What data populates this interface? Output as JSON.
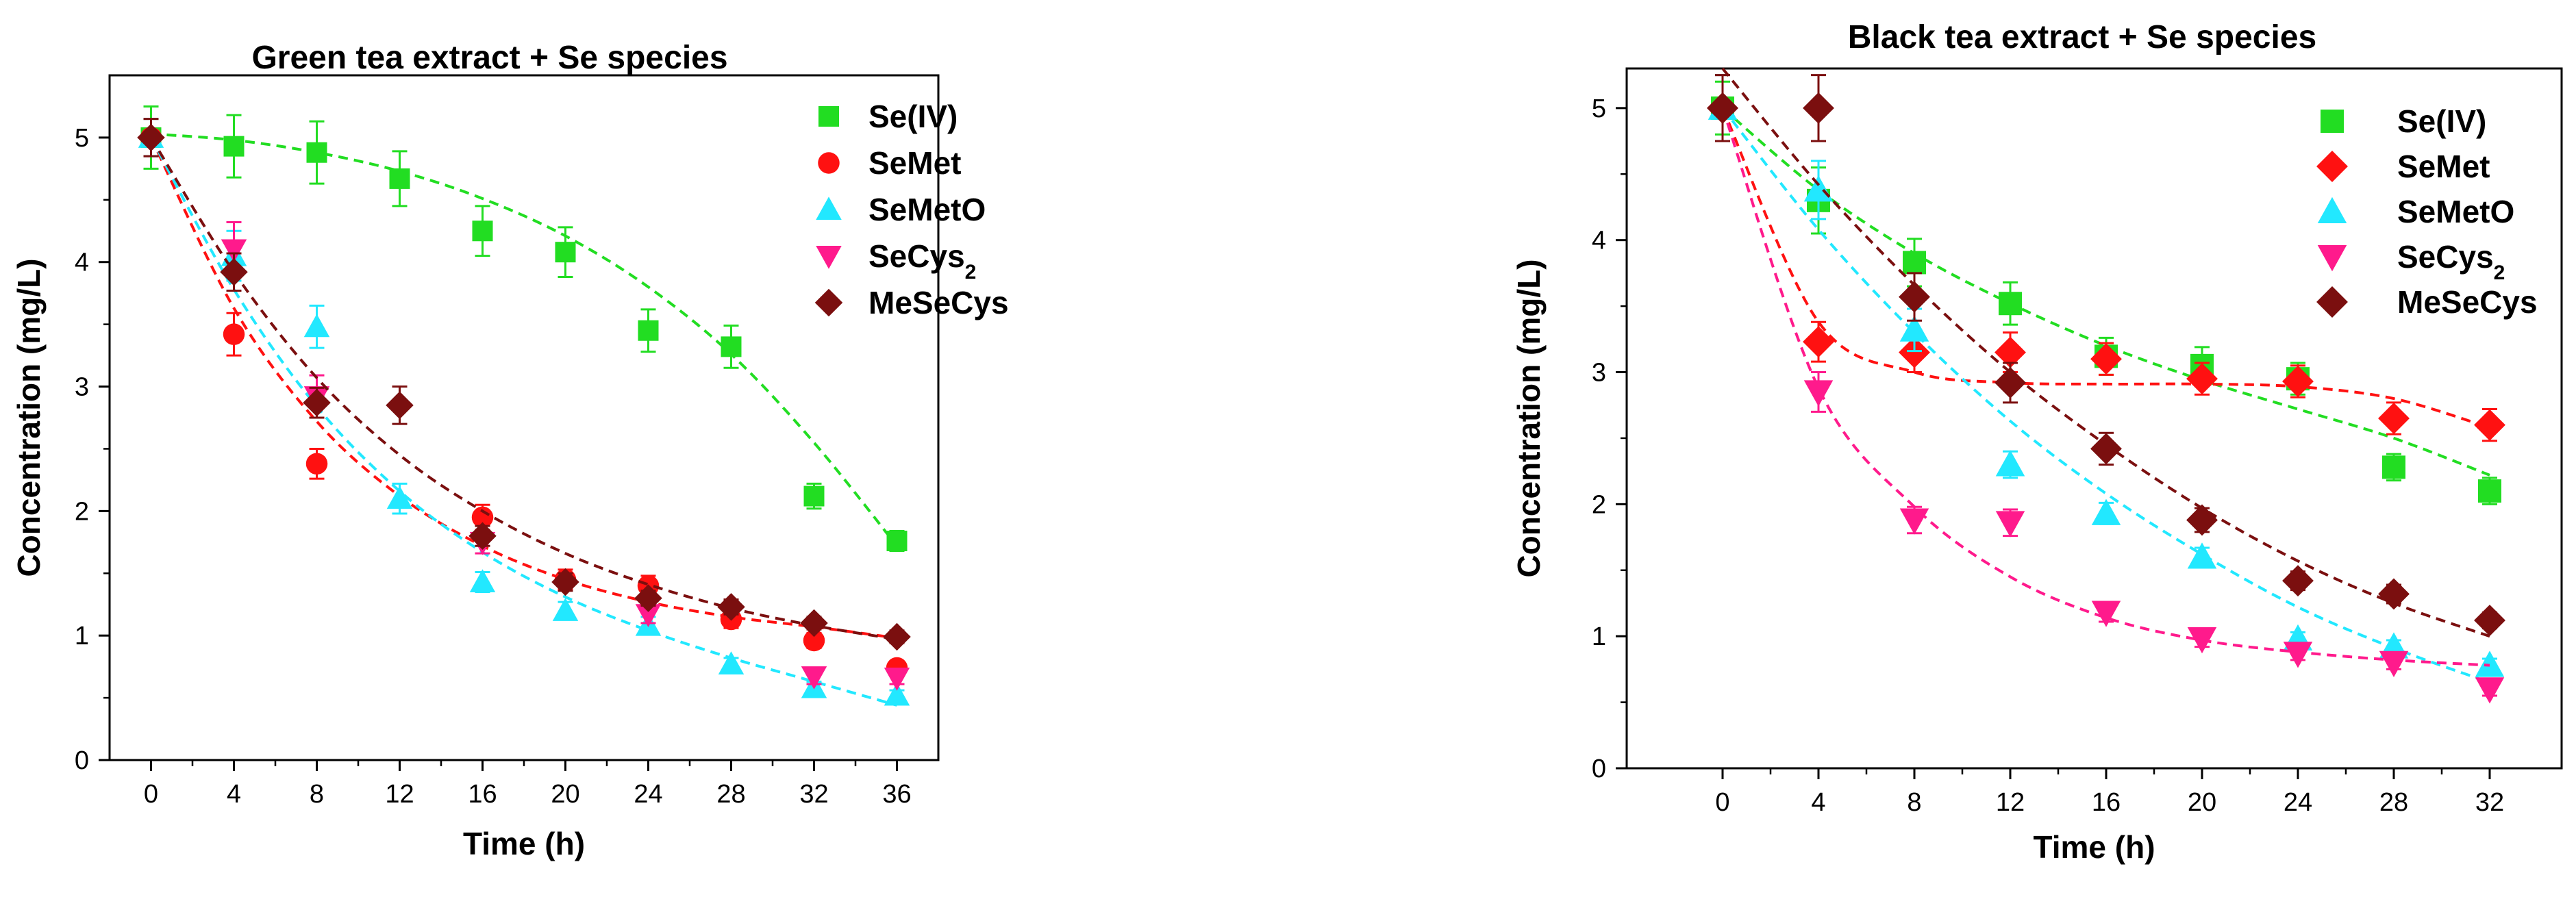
{
  "chart_data": [
    {
      "type": "scatter",
      "title": "Green tea extract + Se species",
      "xlabel": "Time (h)",
      "ylabel": "Concentration (mg/L)",
      "xlim": [
        -2,
        38
      ],
      "ylim": [
        0,
        5.5
      ],
      "xticks": [
        0,
        4,
        8,
        12,
        16,
        20,
        24,
        28,
        32,
        36
      ],
      "yticks": [
        0,
        1,
        2,
        3,
        4,
        5
      ],
      "x": [
        0,
        4,
        8,
        12,
        16,
        20,
        24,
        28,
        32,
        36
      ],
      "legend_position": "top-right",
      "series": [
        {
          "name": "Se(IV)",
          "color": "#22dd22",
          "marker": "square",
          "values": [
            5.0,
            4.93,
            4.88,
            4.67,
            4.25,
            4.08,
            3.45,
            3.32,
            2.12,
            1.76
          ],
          "errors": [
            0.25,
            0.25,
            0.25,
            0.22,
            0.2,
            0.2,
            0.17,
            0.17,
            0.1,
            0.08
          ],
          "fit": [
            5.03,
            4.98,
            4.88,
            4.73,
            4.51,
            4.21,
            3.8,
            3.26,
            2.55,
            1.72
          ]
        },
        {
          "name": "SeMet",
          "color": "#ff1111",
          "marker": "circle",
          "values": [
            5.0,
            3.42,
            2.38,
            null,
            1.95,
            1.45,
            1.4,
            1.13,
            0.96,
            0.74
          ],
          "errors": [
            0.15,
            0.17,
            0.12,
            null,
            0.1,
            0.08,
            0.08,
            0.07,
            0.06,
            0.05
          ],
          "fit": [
            5.0,
            3.63,
            2.72,
            2.12,
            1.72,
            1.45,
            1.27,
            1.15,
            1.07,
            0.98
          ]
        },
        {
          "name": "SeMetO",
          "color": "#22e8ff",
          "marker": "triangle-up",
          "values": [
            5.0,
            4.05,
            3.48,
            2.1,
            1.43,
            1.2,
            1.08,
            0.77,
            0.58,
            0.52
          ],
          "errors": [
            0.15,
            0.2,
            0.17,
            0.12,
            0.08,
            0.07,
            0.07,
            0.05,
            0.05,
            0.04
          ],
          "fit": [
            5.0,
            3.78,
            2.84,
            2.16,
            1.67,
            1.31,
            1.04,
            0.82,
            0.63,
            0.44
          ]
        },
        {
          "name": "SeCys",
          "subscript": "2",
          "color": "#ff1a8c",
          "marker": "triangle-down",
          "values": [
            null,
            4.1,
            2.92,
            null,
            1.75,
            null,
            1.17,
            null,
            0.67,
            0.66
          ],
          "errors": [
            null,
            0.22,
            0.17,
            null,
            0.09,
            null,
            0.07,
            null,
            0.06,
            0.05
          ],
          "fit": null
        },
        {
          "name": "MeSeCys",
          "color": "#7b0f0f",
          "marker": "diamond",
          "values": [
            5.0,
            3.92,
            2.87,
            2.85,
            1.8,
            1.43,
            1.3,
            1.23,
            1.1,
            0.99
          ],
          "errors": [
            0.15,
            0.15,
            0.12,
            0.15,
            0.08,
            0.07,
            0.06,
            0.06,
            0.05,
            0.05
          ],
          "fit": [
            5.0,
            3.92,
            3.07,
            2.45,
            2.0,
            1.66,
            1.41,
            1.22,
            1.08,
            0.97
          ]
        }
      ]
    },
    {
      "type": "scatter",
      "title": "Black tea extract + Se species",
      "xlabel": "Time (h)",
      "ylabel": "Concentration (mg/L)",
      "xlim": [
        -4,
        35
      ],
      "ylim": [
        0,
        5.3
      ],
      "xticks": [
        0,
        4,
        8,
        12,
        16,
        20,
        24,
        28,
        32
      ],
      "yticks": [
        0,
        1,
        2,
        3,
        4,
        5
      ],
      "x": [
        0,
        4,
        8,
        12,
        16,
        20,
        24,
        28,
        32
      ],
      "legend_position": "top-right",
      "series": [
        {
          "name": "Se(IV)",
          "color": "#22dd22",
          "marker": "square",
          "values": [
            5.0,
            4.3,
            3.83,
            3.52,
            3.12,
            3.05,
            2.95,
            2.28,
            2.1
          ],
          "errors": [
            0.2,
            0.25,
            0.18,
            0.16,
            0.14,
            0.14,
            0.12,
            0.1,
            0.1
          ],
          "fit": [
            5.0,
            4.38,
            3.9,
            3.52,
            3.2,
            2.94,
            2.72,
            2.5,
            2.22
          ]
        },
        {
          "name": "SeMet",
          "color": "#ff1111",
          "marker": "diamond",
          "values": [
            5.0,
            3.23,
            3.15,
            3.15,
            3.1,
            2.95,
            2.93,
            2.65,
            2.6
          ],
          "errors": [
            0.25,
            0.15,
            0.15,
            0.15,
            0.12,
            0.12,
            0.12,
            0.12,
            0.12
          ],
          "fit": [
            5.0,
            3.38,
            3.0,
            2.92,
            2.91,
            2.91,
            2.89,
            2.8,
            2.58
          ]
        },
        {
          "name": "SeMetO",
          "color": "#22e8ff",
          "marker": "triangle-up",
          "values": [
            5.0,
            4.38,
            3.32,
            2.3,
            1.93,
            1.6,
            0.98,
            0.92,
            0.78
          ],
          "errors": [
            0.25,
            0.22,
            0.16,
            0.1,
            0.08,
            0.07,
            0.05,
            0.05,
            0.05
          ],
          "fit": [
            5.0,
            4.08,
            3.3,
            2.63,
            2.08,
            1.62,
            1.22,
            0.91,
            0.65
          ]
        },
        {
          "name": "SeCys",
          "subscript": "2",
          "color": "#ff1a8c",
          "marker": "triangle-down",
          "values": [
            null,
            2.85,
            1.88,
            1.86,
            1.18,
            0.98,
            0.87,
            0.8,
            0.6
          ],
          "errors": [
            null,
            0.15,
            0.1,
            0.1,
            0.07,
            0.06,
            0.05,
            0.05,
            0.05
          ],
          "fit": [
            5.0,
            2.88,
            1.98,
            1.45,
            1.14,
            0.97,
            0.88,
            0.82,
            0.78
          ]
        },
        {
          "name": "MeSeCys",
          "color": "#7b0f0f",
          "marker": "diamond",
          "values": [
            5.0,
            5.0,
            3.57,
            2.92,
            2.42,
            1.88,
            1.42,
            1.32,
            1.12
          ],
          "errors": [
            0.25,
            0.25,
            0.18,
            0.15,
            0.12,
            0.09,
            0.07,
            0.07,
            0.06
          ],
          "fit": [
            5.3,
            4.42,
            3.66,
            3.0,
            2.45,
            1.97,
            1.57,
            1.25,
            1.0
          ]
        }
      ]
    }
  ]
}
